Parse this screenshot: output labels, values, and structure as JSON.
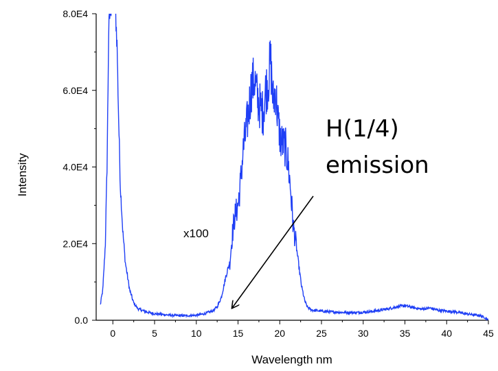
{
  "chart_data": {
    "type": "line",
    "title": "",
    "xlabel": "Wavelength nm",
    "ylabel": "Intensity",
    "xlim": [
      -2,
      45
    ],
    "ylim": [
      0,
      80000
    ],
    "x_ticks": [
      0,
      5,
      10,
      15,
      20,
      25,
      30,
      35,
      40,
      45
    ],
    "y_ticks": [
      0,
      20000,
      40000,
      60000,
      80000
    ],
    "x_tick_labels": [
      "0",
      "5",
      "10",
      "15",
      "20",
      "25",
      "30",
      "35",
      "40",
      "45"
    ],
    "y_tick_labels": [
      "0.0",
      "2.0E4",
      "4.0E4",
      "6.0E4",
      "8.0E4"
    ],
    "grid": false,
    "line_color": "#1f3ff5",
    "series": [
      {
        "x": [
          -1.5,
          -1.2,
          -0.9,
          -0.7,
          -0.5,
          -0.3,
          -0.1,
          0.1,
          0.3,
          0.5,
          0.7,
          0.9,
          1.2,
          1.5,
          2,
          2.5,
          3,
          4,
          5,
          6,
          7,
          8,
          9,
          10,
          11,
          12,
          12.5,
          13,
          13.3,
          13.6,
          14,
          14.3,
          14.6,
          15,
          15.3,
          15.6,
          16,
          16.3,
          16.6,
          17,
          17.3,
          17.6,
          18,
          18.3,
          18.6,
          18.9,
          19.2,
          19.5,
          19.8,
          20.1,
          20.4,
          20.7,
          21,
          21.3,
          21.6,
          22,
          22.3,
          22.6,
          23,
          23.3,
          23.7,
          24,
          25,
          26,
          27,
          28,
          29,
          30,
          31,
          32,
          33,
          34,
          35,
          36,
          37,
          38,
          39,
          40,
          41,
          42,
          43,
          44,
          44.5,
          45
        ],
        "y": [
          4000,
          8000,
          20000,
          40000,
          75000,
          82000,
          82000,
          82000,
          82000,
          72000,
          52000,
          35000,
          23000,
          15000,
          8000,
          4500,
          3000,
          2200,
          1700,
          1500,
          1300,
          1200,
          1200,
          1300,
          1700,
          2500,
          3500,
          6000,
          9000,
          12000,
          15000,
          22000,
          27000,
          30000,
          36000,
          44000,
          50000,
          55000,
          61000,
          63000,
          58000,
          56000,
          54000,
          60000,
          62000,
          68000,
          57000,
          60000,
          52000,
          47000,
          46000,
          45000,
          41000,
          34000,
          25000,
          19000,
          14000,
          9000,
          5000,
          3500,
          2800,
          2600,
          2400,
          2200,
          2100,
          2000,
          2000,
          2100,
          2300,
          2600,
          3000,
          3500,
          3800,
          3300,
          2900,
          3200,
          2600,
          2400,
          2200,
          1800,
          1500,
          1200,
          800,
          0
        ]
      }
    ],
    "annotations": {
      "scale_note": "x100",
      "emission_line1": "H(1/4)",
      "emission_line2": "emission"
    }
  }
}
